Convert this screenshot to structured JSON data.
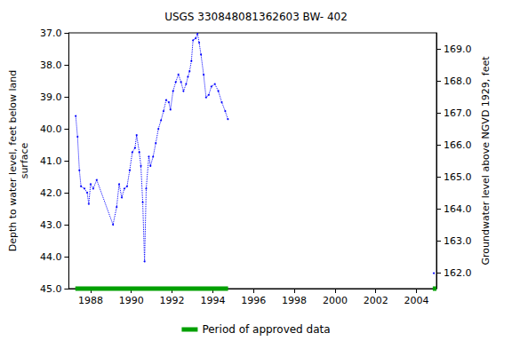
{
  "chart_data": {
    "type": "line",
    "title": "USGS 330848081362603 BW- 402",
    "x_label": "",
    "y_label": "Depth to water level, feet below land\nsurface",
    "y2_label": "Groundwater level above NGVD 1929, feet",
    "xlim": [
      1986.93,
      2004.98
    ],
    "xticks": [
      1988,
      1990,
      1992,
      1994,
      1996,
      1998,
      2000,
      2002,
      2004
    ],
    "ylim": [
      45,
      37
    ],
    "yticks": [
      {
        "value": 37,
        "label": "37.0"
      },
      {
        "value": 38,
        "label": "38.0"
      },
      {
        "value": 39,
        "label": "39.0"
      },
      {
        "value": 40,
        "label": "40.0"
      },
      {
        "value": 41,
        "label": "41.0"
      },
      {
        "value": 42,
        "label": "42.0"
      },
      {
        "value": 43,
        "label": "43.0"
      },
      {
        "value": 44,
        "label": "44.0"
      },
      {
        "value": 45,
        "label": "45.0"
      }
    ],
    "y2lim": [
      161.5,
      169.5
    ],
    "y2ticks": [
      {
        "value": 162,
        "label": "162.0"
      },
      {
        "value": 163,
        "label": "163.0"
      },
      {
        "value": 164,
        "label": "164.0"
      },
      {
        "value": 165,
        "label": "165.0"
      },
      {
        "value": 166,
        "label": "166.0"
      },
      {
        "value": 167,
        "label": "167.0"
      },
      {
        "value": 168,
        "label": "168.0"
      },
      {
        "value": 169,
        "label": "169.0"
      }
    ],
    "grid": false,
    "legend": "bottom",
    "x": [
      1987.27,
      1987.36,
      1987.45,
      1987.53,
      1987.7,
      1987.83,
      1987.91,
      1988.0,
      1988.13,
      1988.3,
      1989.1,
      1989.28,
      1989.4,
      1989.53,
      1989.66,
      1989.79,
      1989.92,
      1990.05,
      1990.18,
      1990.26,
      1990.39,
      1990.47,
      1990.56,
      1990.65,
      1990.73,
      1990.86,
      1990.94,
      1991.07,
      1991.2,
      1991.33,
      1991.46,
      1991.58,
      1991.71,
      1991.84,
      1991.92,
      1992.05,
      1992.18,
      1992.31,
      1992.44,
      1992.56,
      1992.69,
      1992.78,
      1992.86,
      1992.95,
      1993.03,
      1993.16,
      1993.25,
      1993.33,
      1993.42,
      1993.55,
      1993.67,
      1993.8,
      1993.93,
      1994.1,
      1994.27,
      1994.44,
      1994.61,
      1994.74,
      2004.85,
      2004.85
    ],
    "values": [
      39.6,
      40.25,
      41.3,
      41.8,
      41.87,
      42.0,
      42.35,
      41.73,
      41.87,
      41.6,
      43.0,
      42.45,
      41.73,
      42.15,
      41.87,
      41.8,
      41.3,
      40.73,
      40.6,
      40.2,
      40.73,
      41.16,
      42.3,
      44.15,
      41.87,
      40.87,
      41.16,
      40.87,
      40.45,
      40.0,
      39.73,
      39.45,
      39.1,
      39.17,
      39.4,
      38.82,
      38.54,
      38.3,
      38.54,
      38.82,
      38.6,
      38.37,
      38.2,
      37.88,
      37.23,
      37.17,
      37.03,
      37.31,
      37.68,
      38.31,
      39.02,
      38.94,
      38.68,
      38.6,
      38.82,
      39.17,
      39.45,
      39.7,
      null,
      44.52
    ],
    "color": "#0000ff",
    "marker": "circle",
    "line_style": "dotted",
    "approved": {
      "name": "Period of approved data",
      "color": "#00a000",
      "periods": [
        [
          1987.25,
          1994.75
        ],
        [
          2004.8,
          2004.98
        ]
      ]
    }
  }
}
